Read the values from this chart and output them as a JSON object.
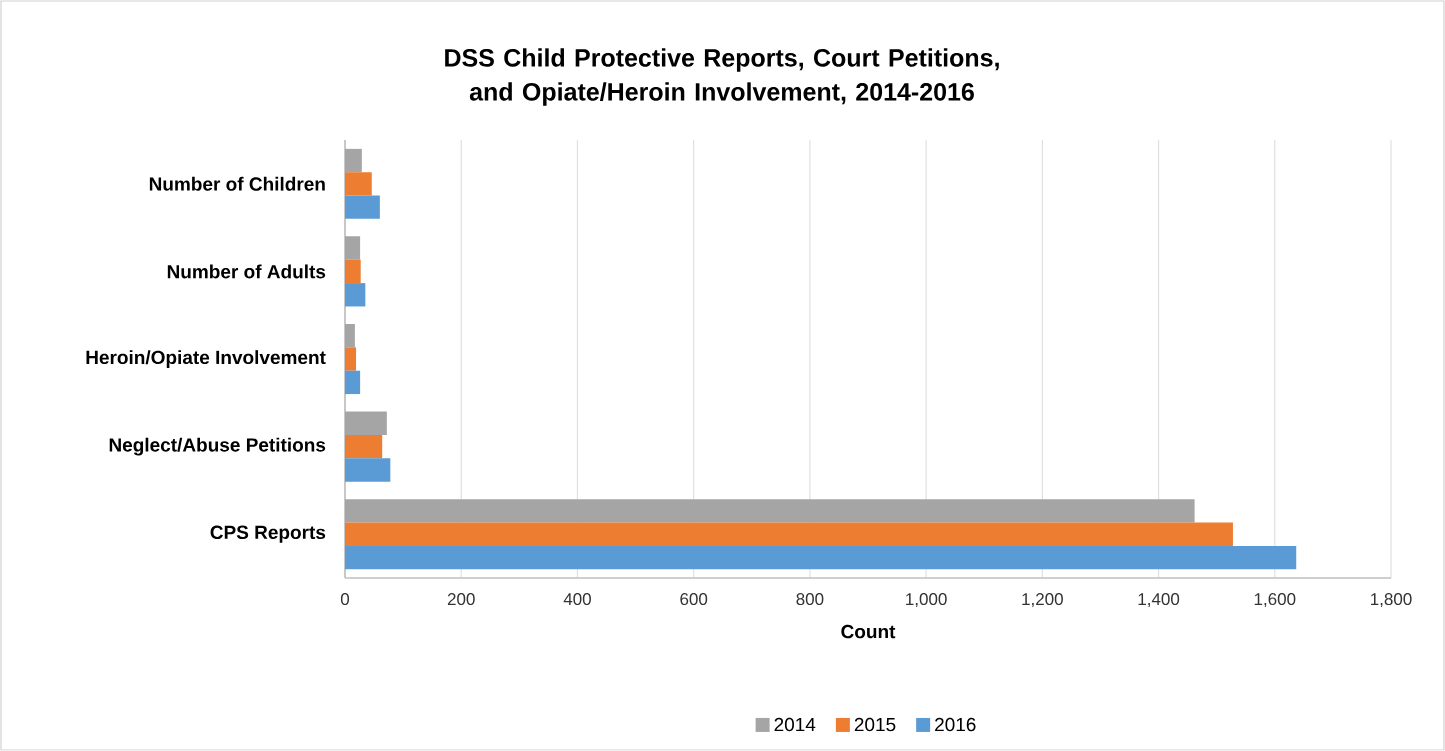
{
  "chart_data": {
    "type": "bar",
    "orientation": "horizontal",
    "title": "DSS Child Protective Reports, Court Petitions, and Opiate/Heroin Involvement, 2014-2016",
    "xlabel": "Count",
    "categories": [
      "Number of Children",
      "Number of Adults",
      "Heroin/Opiate Involvement",
      "Neglect/Abuse Petitions",
      "CPS Reports"
    ],
    "series": [
      {
        "name": "2014",
        "color": "#a5a5a5",
        "values": [
          29,
          26,
          17,
          72,
          1462
        ]
      },
      {
        "name": "2015",
        "color": "#ed7d31",
        "values": [
          46,
          27,
          19,
          64,
          1528
        ]
      },
      {
        "name": "2016",
        "color": "#5b9bd5",
        "values": [
          60,
          35,
          26,
          78,
          1637
        ]
      }
    ],
    "xlim": [
      0,
      1800
    ],
    "xticks": [
      0,
      200,
      400,
      600,
      800,
      {
        "value": 1000,
        "label": "1,000"
      },
      {
        "value": 1200,
        "label": "1,200"
      },
      {
        "value": 1400,
        "label": "1,400"
      },
      {
        "value": 1600,
        "label": "1,600"
      },
      {
        "value": 1800,
        "label": "1,800"
      }
    ],
    "grid": "x",
    "legend": "bottom"
  }
}
